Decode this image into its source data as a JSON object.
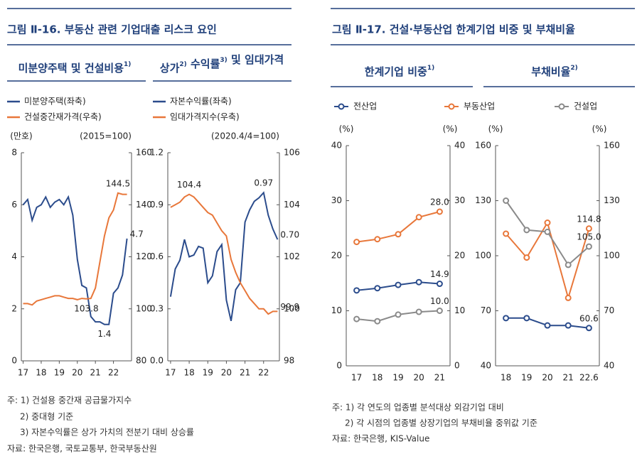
{
  "figures": [
    {
      "title": "그림 Ⅱ-16. 부동산 관련 기업대출 리스크 요인",
      "notes": [
        "주: 1) 건설용 중간재 공급물가지수",
        "2) 중대형 기준",
        "3) 자본수익률은 상가 가치의 전분기 대비 상승률"
      ],
      "source": "자료: 한국은행, 국토교통부, 한국부동산원"
    },
    {
      "title": "그림 Ⅱ-17. 건설·부동산업 한계기업 비중 및 부채비율",
      "notes": [
        "주: 1) 각 연도의 업종별 분석대상 외감기업 대비",
        "2) 각 시점의 업종별 상장기업의 부채비율 중위값 기준"
      ],
      "source": "자료: 한국은행, KIS-Value"
    }
  ],
  "chart_data": [
    {
      "type": "line",
      "title": [
        {
          "text": "미분양주택 및 건설비용",
          "sup": "1)"
        }
      ],
      "y_unit": "(만호)",
      "y2_unit": "(2015=100)",
      "x": [
        17,
        17.25,
        17.5,
        17.75,
        18,
        18.25,
        18.5,
        18.75,
        19,
        19.25,
        19.5,
        19.75,
        20,
        20.25,
        20.5,
        20.75,
        21,
        21.25,
        21.5,
        21.75,
        22,
        22.25,
        22.5,
        22.75
      ],
      "xlim": [
        16.9,
        23
      ],
      "xticks": [
        17,
        18,
        19,
        20,
        21,
        22
      ],
      "ylim": [
        0,
        8
      ],
      "yticks": [
        0,
        2,
        4,
        6,
        8
      ],
      "y2lim": [
        80,
        160
      ],
      "y2ticks": [
        80,
        100,
        120,
        140,
        160
      ],
      "series": [
        {
          "name": "미분양주택(좌축)",
          "color": "#2b4c8c",
          "values": [
            6.0,
            6.2,
            5.4,
            5.9,
            6.0,
            6.3,
            5.9,
            6.1,
            6.2,
            6.0,
            6.3,
            5.6,
            3.9,
            2.9,
            2.8,
            1.7,
            1.5,
            1.5,
            1.4,
            1.4,
            2.6,
            2.8,
            3.3,
            4.7
          ],
          "value_labels": [
            null,
            null,
            null,
            null,
            null,
            null,
            null,
            null,
            null,
            null,
            null,
            null,
            null,
            null,
            null,
            null,
            null,
            null,
            "1.4",
            null,
            null,
            null,
            null,
            "4.7"
          ]
        },
        {
          "name": "건설중간재가격(우축)",
          "color": "#e8773a",
          "axis": "y2",
          "values": [
            102,
            102,
            101.5,
            103,
            103.5,
            104,
            104.5,
            105,
            105,
            104.5,
            104,
            104,
            103.5,
            104,
            103.8,
            104,
            108,
            118,
            128,
            135,
            138,
            144.5,
            144,
            144
          ],
          "value_labels": [
            null,
            null,
            null,
            null,
            null,
            null,
            null,
            null,
            null,
            null,
            null,
            null,
            null,
            null,
            "103.8",
            null,
            null,
            null,
            null,
            null,
            null,
            "144.5",
            null,
            null
          ]
        }
      ]
    },
    {
      "type": "line",
      "title": [
        {
          "text": "상가",
          "sup": "2)"
        },
        {
          "text": " 수익률",
          "sup": "3)"
        },
        {
          "text": " 및 임대가격"
        }
      ],
      "y2_unit": "(2020.4/4=100)",
      "x": [
        17,
        17.25,
        17.5,
        17.75,
        18,
        18.25,
        18.5,
        18.75,
        19,
        19.25,
        19.5,
        19.75,
        20,
        20.25,
        20.5,
        20.75,
        21,
        21.25,
        21.5,
        21.75,
        22,
        22.25,
        22.5,
        22.75
      ],
      "xlim": [
        16.85,
        22.85
      ],
      "xticks": [
        17,
        18,
        19,
        20,
        21,
        22
      ],
      "ylim": [
        0,
        1.2
      ],
      "yticks": [
        {
          "value": 0,
          "label": "0.0"
        },
        0.3,
        0.6,
        0.9,
        1.2
      ],
      "y2lim": [
        98,
        106
      ],
      "y2ticks": [
        98,
        100,
        102,
        104,
        106
      ],
      "series": [
        {
          "name": "자본수익률(좌축)",
          "color": "#2b4c8c",
          "values": [
            0.37,
            0.53,
            0.58,
            0.7,
            0.6,
            0.61,
            0.66,
            0.65,
            0.45,
            0.49,
            0.63,
            0.67,
            0.35,
            0.23,
            0.41,
            0.45,
            0.8,
            0.87,
            0.92,
            0.94,
            0.97,
            0.84,
            0.76,
            0.7
          ],
          "value_labels": [
            null,
            null,
            null,
            null,
            null,
            null,
            null,
            null,
            null,
            null,
            null,
            null,
            null,
            null,
            null,
            null,
            null,
            null,
            null,
            null,
            "0.97",
            null,
            null,
            "0.70"
          ]
        },
        {
          "name": "임대가격지수(우축)",
          "color": "#e8773a",
          "axis": "y2",
          "values": [
            103.9,
            104.0,
            104.1,
            104.3,
            104.4,
            104.3,
            104.1,
            103.9,
            103.7,
            103.6,
            103.3,
            103.0,
            102.8,
            101.9,
            101.4,
            101.0,
            100.7,
            100.4,
            100.2,
            100.0,
            100.0,
            99.8,
            99.9,
            99.9
          ],
          "value_labels": [
            null,
            null,
            null,
            null,
            "104.4",
            null,
            null,
            null,
            null,
            null,
            null,
            null,
            null,
            null,
            null,
            null,
            null,
            null,
            null,
            null,
            null,
            null,
            null,
            "99.9"
          ]
        }
      ]
    },
    {
      "type": "line",
      "markers": true,
      "title": [
        {
          "text": "한계기업 비중",
          "sup": "1)"
        }
      ],
      "y_unit": "(%)",
      "y2_unit": "(%)",
      "categories": [
        "17",
        "18",
        "19",
        "20",
        "21"
      ],
      "ylim": [
        0,
        40
      ],
      "yticks": [
        0,
        10,
        20,
        30,
        40
      ],
      "y2lim": [
        0,
        40
      ],
      "y2ticks": [
        0,
        10,
        20,
        30,
        40
      ],
      "series": [
        {
          "name": "전산업",
          "color": "#2b4c8c",
          "values": [
            13.7,
            14.1,
            14.7,
            15.2,
            14.9
          ],
          "value_labels": [
            null,
            null,
            null,
            null,
            "14.9"
          ]
        },
        {
          "name": "부동산업",
          "color": "#e8773a",
          "values": [
            22.5,
            23.0,
            23.9,
            27.0,
            28.0
          ],
          "value_labels": [
            null,
            null,
            null,
            null,
            "28.0"
          ]
        },
        {
          "name": "건설업",
          "color": "#8a8a8a",
          "values": [
            8.5,
            8.1,
            9.3,
            9.8,
            10.0
          ],
          "value_labels": [
            null,
            null,
            null,
            null,
            "10.0"
          ]
        }
      ]
    },
    {
      "type": "line",
      "markers": true,
      "title": [
        {
          "text": "부채비율",
          "sup": "2)"
        }
      ],
      "y_unit": "(%)",
      "y2_unit": "(%)",
      "categories": [
        "18",
        "19",
        "20",
        "21",
        "22.6"
      ],
      "ylim": [
        40,
        160
      ],
      "yticks": [
        40,
        70,
        100,
        130,
        160
      ],
      "y2lim": [
        40,
        160
      ],
      "y2ticks": [
        40,
        70,
        100,
        130,
        160
      ],
      "series": [
        {
          "color": "#2b4c8c",
          "values": [
            66,
            66,
            62,
            62,
            60.6
          ],
          "value_labels": [
            null,
            null,
            null,
            null,
            "60.6"
          ]
        },
        {
          "color": "#e8773a",
          "values": [
            112,
            99,
            118,
            77,
            114.8
          ],
          "value_labels": [
            null,
            null,
            null,
            null,
            "114.8"
          ]
        },
        {
          "color": "#8a8a8a",
          "values": [
            130,
            114,
            113,
            95,
            105.0
          ],
          "value_labels": [
            null,
            null,
            null,
            null,
            "105.0"
          ]
        }
      ]
    }
  ]
}
